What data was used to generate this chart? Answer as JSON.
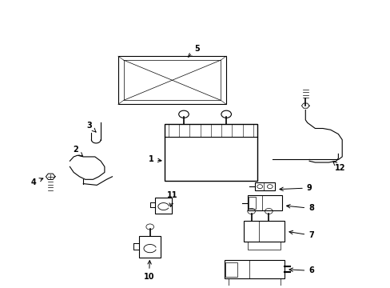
{
  "background": "#ffffff",
  "line_color": "#000000",
  "lw": 0.8
}
